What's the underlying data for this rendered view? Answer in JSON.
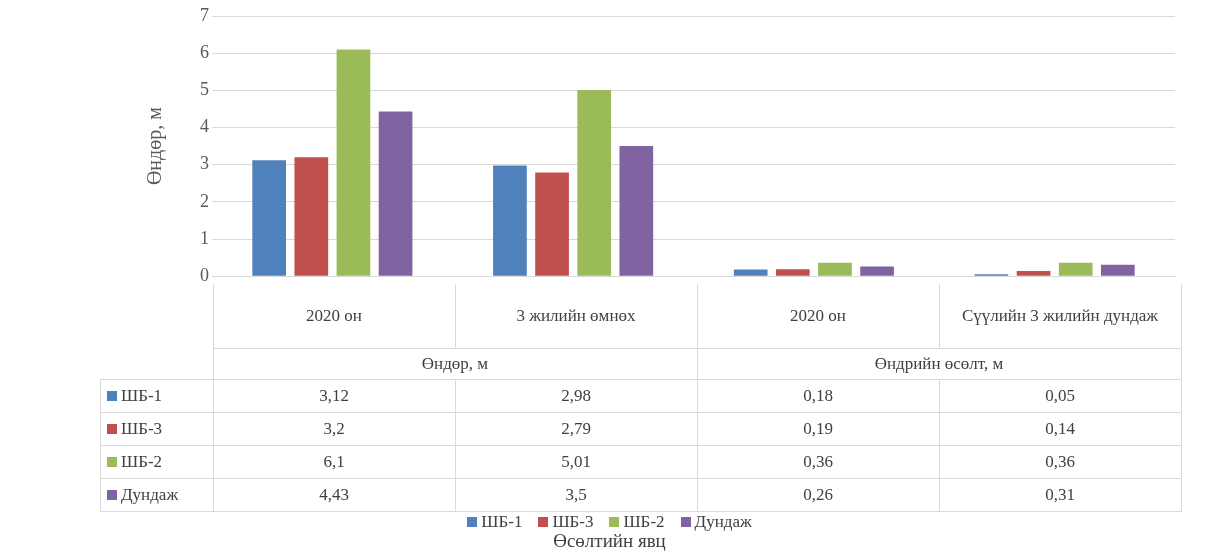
{
  "chart_data": {
    "type": "bar",
    "ylabel": "Өндөр, м",
    "categories": [
      "2020  он",
      "3 жилийн өмнөх",
      "2020  он",
      "Сүүлийн 3 жилийн дундаж"
    ],
    "annotations": [
      "Өндөр, м",
      "Өндрийн өсөлт, м",
      "Өсөлтийн явц"
    ],
    "series": [
      {
        "name": "ШБ-1",
        "color": "#4f81bd",
        "values": [
          3.12,
          2.98,
          0.18,
          0.05
        ],
        "value_labels": [
          "3,12",
          "2,98",
          "0,18",
          "0,05"
        ]
      },
      {
        "name": "ШБ-3",
        "color": "#c0504d",
        "values": [
          3.2,
          2.79,
          0.19,
          0.14
        ],
        "value_labels": [
          "3,2",
          "2,79",
          "0,19",
          "0,14"
        ]
      },
      {
        "name": "ШБ-2",
        "color": "#9bbb59",
        "values": [
          6.1,
          5.01,
          0.36,
          0.36
        ],
        "value_labels": [
          "6,1",
          "5,01",
          "0,36",
          "0,36"
        ]
      },
      {
        "name": "Дундаж",
        "color": "#8064a2",
        "values": [
          4.43,
          3.5,
          0.26,
          0.31
        ],
        "value_labels": [
          "4,43",
          "3,5",
          "0,26",
          "0,31"
        ]
      }
    ],
    "ylim": [
      0,
      7
    ],
    "yticks": [
      0,
      1,
      2,
      3,
      4,
      5,
      6,
      7
    ],
    "grid": "y",
    "legend": "bottom"
  }
}
